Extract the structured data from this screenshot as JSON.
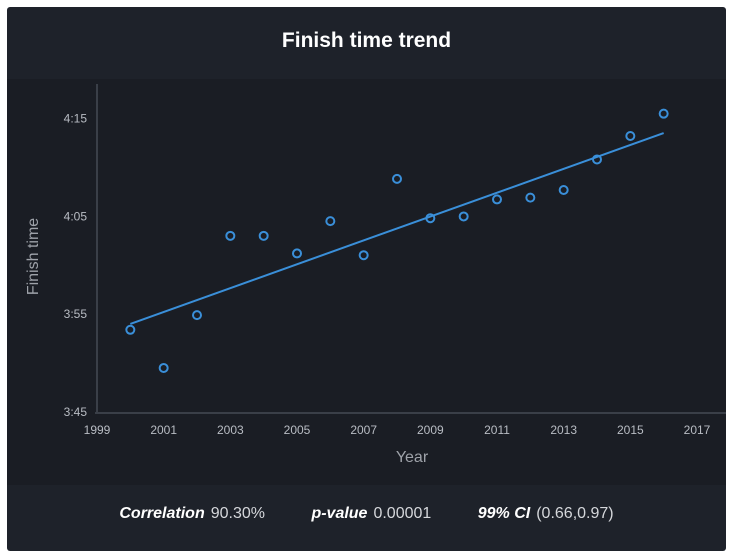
{
  "title": "Finish time trend",
  "stats": {
    "correlation_label": "Correlation",
    "correlation_value": "90.30%",
    "pvalue_label": "p-value",
    "pvalue_value": "0.00001",
    "ci_label": "99% CI",
    "ci_value": "(0.66,0.97)"
  },
  "colors": {
    "background": "#1e222a",
    "plot_background": "#1a1d24",
    "series": "#3a8fd9"
  },
  "chart_data": {
    "type": "scatter",
    "xlabel": "Year",
    "ylabel": "Finish time",
    "xlim": [
      1999,
      2017
    ],
    "ylim": [
      3.75,
      4.3
    ],
    "x_ticks": [
      1999,
      2001,
      2003,
      2005,
      2007,
      2009,
      2011,
      2013,
      2015,
      2017
    ],
    "y_ticks": [
      {
        "value": 3.75,
        "label": "3:45"
      },
      {
        "value": 3.9167,
        "label": "3:55"
      },
      {
        "value": 4.0833,
        "label": "4:05"
      },
      {
        "value": 4.25,
        "label": "4:15"
      }
    ],
    "grid": false,
    "x": [
      2000,
      2001,
      2002,
      2003,
      2004,
      2005,
      2006,
      2007,
      2008,
      2009,
      2010,
      2011,
      2012,
      2013,
      2014,
      2015,
      2016
    ],
    "y": [
      3.89,
      3.825,
      3.915,
      4.05,
      4.05,
      4.02,
      4.075,
      4.017,
      4.147,
      4.08,
      4.083,
      4.112,
      4.115,
      4.128,
      4.18,
      4.22,
      4.258
    ],
    "trendline": {
      "x": [
        2000,
        2016
      ],
      "y": [
        3.9,
        4.225
      ]
    }
  }
}
